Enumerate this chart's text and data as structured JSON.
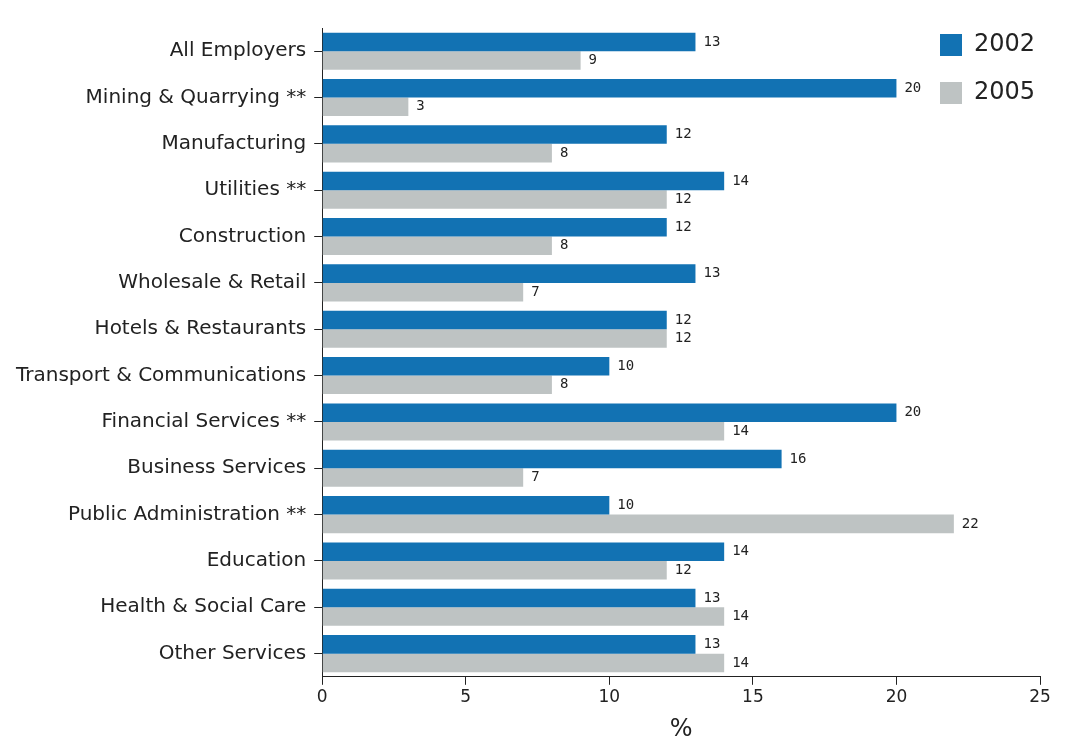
{
  "chart_data": {
    "type": "bar",
    "orientation": "horizontal",
    "xlabel": "%",
    "categories": [
      "All Employers",
      "Mining & Quarrying **",
      "Manufacturing",
      "Utilities **",
      "Construction",
      "Wholesale & Retail",
      "Hotels & Restaurants",
      "Transport & Communications",
      "Financial Services **",
      "Business Services",
      "Public Administration **",
      "Education",
      "Health & Social Care",
      "Other Services"
    ],
    "series": [
      {
        "name": "2002",
        "color": "#1272b3",
        "values": [
          13,
          20,
          12,
          14,
          12,
          13,
          12,
          10,
          20,
          16,
          10,
          14,
          13,
          13
        ]
      },
      {
        "name": "2005",
        "color": "#bec3c3",
        "values": [
          9,
          3,
          8,
          12,
          8,
          7,
          12,
          8,
          14,
          7,
          22,
          12,
          14,
          14
        ]
      }
    ],
    "xlim": [
      0,
      25
    ],
    "xticks": [
      0,
      5,
      10,
      15,
      20,
      25
    ],
    "grid": false,
    "legend": "top right",
    "data_labels": true
  }
}
